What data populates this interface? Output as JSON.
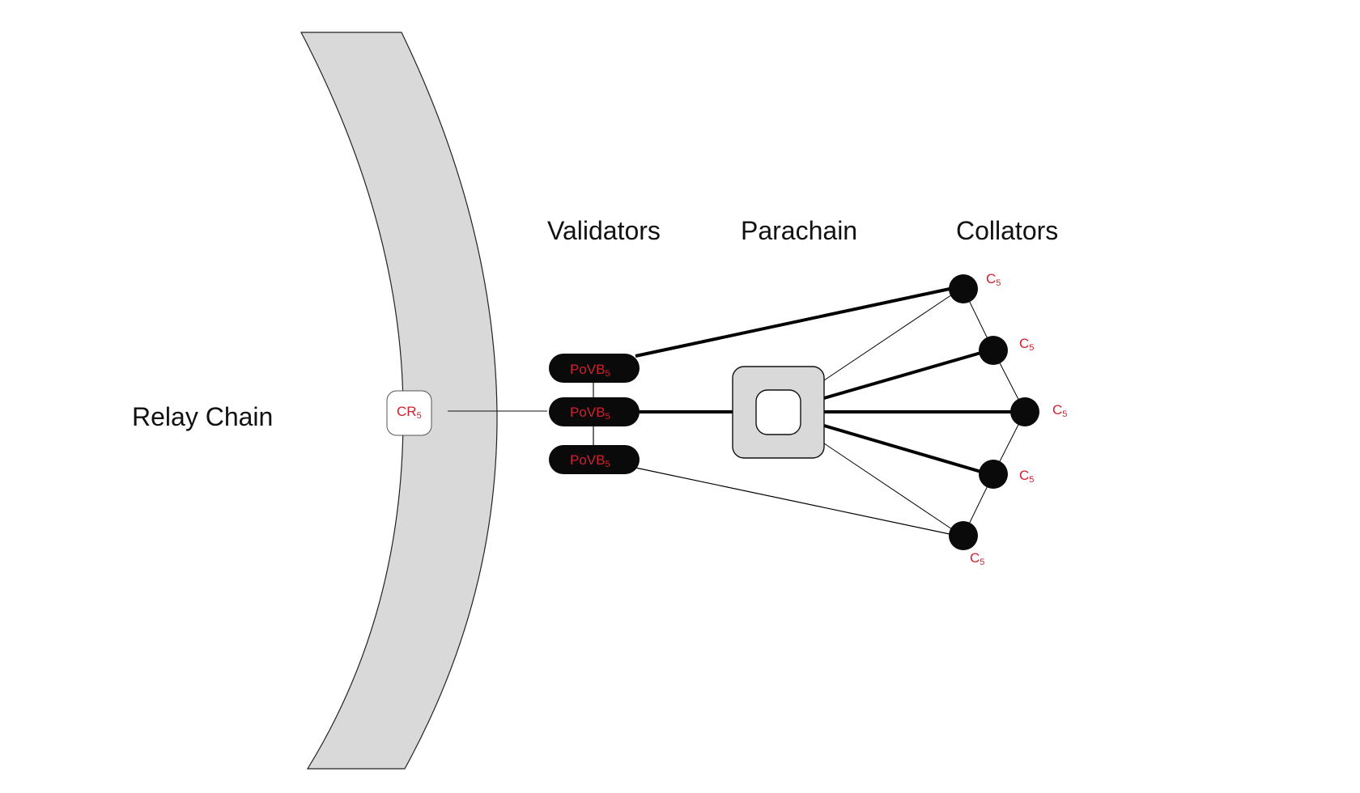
{
  "labels": {
    "relay_chain": "Relay Chain",
    "validators": "Validators",
    "parachain": "Parachain",
    "collators": "Collators"
  },
  "relay_node": {
    "main": "CR",
    "sub": "5"
  },
  "validators": [
    {
      "main": "PoVB",
      "sub": "5"
    },
    {
      "main": "PoVB",
      "sub": "5"
    },
    {
      "main": "PoVB",
      "sub": "5"
    }
  ],
  "collators": [
    {
      "main": "C",
      "sub": "5"
    },
    {
      "main": "C",
      "sub": "5"
    },
    {
      "main": "C",
      "sub": "5"
    },
    {
      "main": "C",
      "sub": "5"
    },
    {
      "main": "C",
      "sub": "5"
    }
  ],
  "colors": {
    "relay_band": "#d9d9d9",
    "node": "#0a0a0a",
    "label_red": "#d3202e",
    "parachain_block": "#d9d9d9"
  }
}
